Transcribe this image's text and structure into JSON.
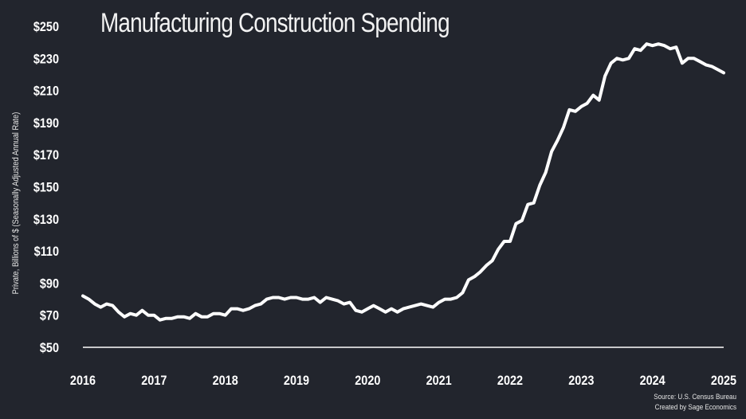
{
  "chart_data": {
    "type": "line",
    "title": "Manufacturing Construction Spending",
    "ylabel": "Private, Billions of $ (Seasonally Adjusted Annual Rate)",
    "xlabel": "",
    "source_lines": [
      "Source: U.S. Census Bureau",
      "Created by Sage Economics"
    ],
    "ylim": [
      50,
      250
    ],
    "xlim": [
      2016,
      2025
    ],
    "y_ticks": [
      50,
      70,
      90,
      110,
      130,
      150,
      170,
      190,
      210,
      230,
      250
    ],
    "y_tick_labels": [
      "$50",
      "$70",
      "$90",
      "$110",
      "$130",
      "$150",
      "$170",
      "$190",
      "$210",
      "$230",
      "$250"
    ],
    "x_ticks": [
      2016,
      2017,
      2018,
      2019,
      2020,
      2021,
      2022,
      2023,
      2024,
      2025
    ],
    "x_tick_labels": [
      "2016",
      "2017",
      "2018",
      "2019",
      "2020",
      "2021",
      "2022",
      "2023",
      "2024",
      "2025"
    ],
    "grid": false,
    "line_color": "#ffffff",
    "background": "#22252d",
    "series": [
      {
        "x": [
          2016.0,
          2016.083,
          2016.167,
          2016.25,
          2016.333,
          2016.417,
          2016.5,
          2016.583,
          2016.667,
          2016.75,
          2016.833,
          2016.917,
          2017.0,
          2017.083,
          2017.167,
          2017.25,
          2017.333,
          2017.417,
          2017.5,
          2017.583,
          2017.667,
          2017.75,
          2017.833,
          2017.917,
          2018.0,
          2018.083,
          2018.167,
          2018.25,
          2018.333,
          2018.417,
          2018.5,
          2018.583,
          2018.667,
          2018.75,
          2018.833,
          2018.917,
          2019.0,
          2019.083,
          2019.167,
          2019.25,
          2019.333,
          2019.417,
          2019.5,
          2019.583,
          2019.667,
          2019.75,
          2019.833,
          2019.917,
          2020.0,
          2020.083,
          2020.167,
          2020.25,
          2020.333,
          2020.417,
          2020.5,
          2020.583,
          2020.667,
          2020.75,
          2020.833,
          2020.917,
          2021.0,
          2021.083,
          2021.167,
          2021.25,
          2021.333,
          2021.417,
          2021.5,
          2021.583,
          2021.667,
          2021.75,
          2021.833,
          2021.917,
          2022.0,
          2022.083,
          2022.167,
          2022.25,
          2022.333,
          2022.417,
          2022.5,
          2022.583,
          2022.667,
          2022.75,
          2022.833,
          2022.917,
          2023.0,
          2023.083,
          2023.167,
          2023.25,
          2023.333,
          2023.417,
          2023.5,
          2023.583,
          2023.667,
          2023.75,
          2023.833,
          2023.917,
          2024.0,
          2024.083,
          2024.167,
          2024.25,
          2024.333,
          2024.417,
          2024.5,
          2024.583,
          2024.667,
          2024.75,
          2024.833,
          2024.917,
          2025.0
        ],
        "values": [
          82,
          80,
          77,
          75,
          77,
          76,
          72,
          69,
          71,
          70,
          73,
          70,
          70,
          67,
          68,
          68,
          69,
          69,
          68,
          71,
          69,
          69,
          71,
          71,
          70,
          74,
          74,
          73,
          74,
          76,
          77,
          80,
          81,
          81,
          80,
          81,
          81,
          80,
          80,
          81,
          78,
          81,
          80,
          79,
          77,
          78,
          73,
          72,
          74,
          76,
          74,
          72,
          74,
          72,
          74,
          75,
          76,
          77,
          76,
          75,
          78,
          80,
          80,
          81,
          84,
          92,
          94,
          97,
          101,
          104,
          111,
          116,
          116,
          127,
          129,
          139,
          140,
          151,
          159,
          172,
          179,
          187,
          198,
          197,
          200,
          202,
          207,
          204,
          219,
          227,
          230,
          229,
          230,
          236,
          235,
          239,
          238,
          239,
          238,
          236,
          237,
          227,
          230,
          230,
          228,
          226,
          225,
          223,
          221
        ]
      }
    ]
  }
}
